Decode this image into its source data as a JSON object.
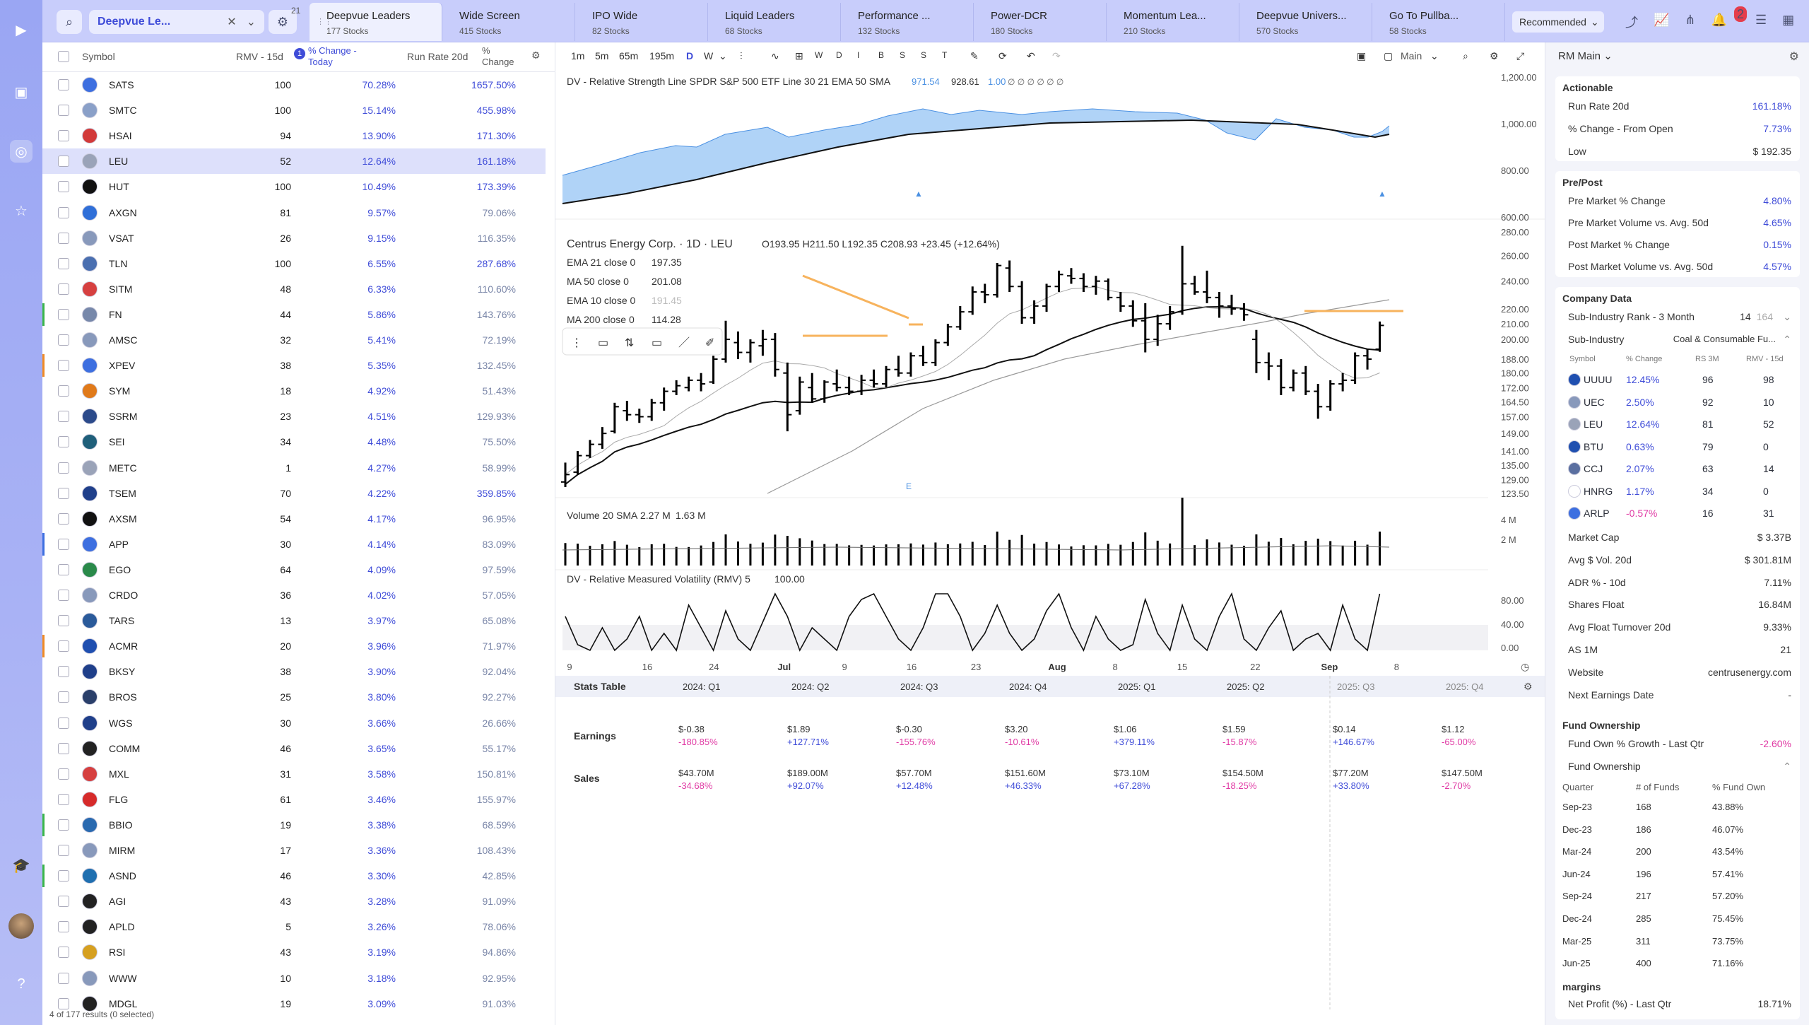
{
  "app": {
    "watchlist_name": "Deepvue Le...",
    "filter_count": "21",
    "recommended_label": "Recommended",
    "notif_count": "2"
  },
  "tabs": [
    {
      "name": "Deepvue Leaders",
      "sub": "177 Stocks"
    },
    {
      "name": "Wide Screen",
      "sub": "415 Stocks"
    },
    {
      "name": "IPO Wide",
      "sub": "82 Stocks"
    },
    {
      "name": "Liquid Leaders",
      "sub": "68 Stocks"
    },
    {
      "name": "Performance ...",
      "sub": "132 Stocks"
    },
    {
      "name": "Power-DCR",
      "sub": "180 Stocks"
    },
    {
      "name": "Momentum Lea...",
      "sub": "210 Stocks"
    },
    {
      "name": "Deepvue Univers...",
      "sub": "570 Stocks"
    },
    {
      "name": "Go To Pullba...",
      "sub": "58 Stocks"
    }
  ],
  "watchlist": {
    "headers": {
      "symbol": "Symbol",
      "rmv": "RMV - 15d",
      "sort_badge": "1",
      "pct": "% Change - Today",
      "rr": "Run Rate 20d",
      "open": "% Change - Open"
    },
    "footer": "4 of 177 results (0 selected)",
    "rows": [
      {
        "sym": "SATS",
        "rmv": "100",
        "pct": "70.28%",
        "rr": "1657.50%",
        "hot": true,
        "color": "#3d6fe0",
        "bar": ""
      },
      {
        "sym": "SMTC",
        "rmv": "100",
        "pct": "15.14%",
        "rr": "455.98%",
        "hot": true,
        "color": "#8aa0c8",
        "bar": ""
      },
      {
        "sym": "HSAI",
        "rmv": "94",
        "pct": "13.90%",
        "rr": "171.30%",
        "hot": true,
        "color": "#d23a3a",
        "bar": ""
      },
      {
        "sym": "LEU",
        "rmv": "52",
        "pct": "12.64%",
        "rr": "161.18%",
        "hot": true,
        "color": "#9aa3b8",
        "bar": "",
        "sel": true
      },
      {
        "sym": "HUT",
        "rmv": "100",
        "pct": "10.49%",
        "rr": "173.39%",
        "hot": true,
        "color": "#111111",
        "bar": ""
      },
      {
        "sym": "AXGN",
        "rmv": "81",
        "pct": "9.57%",
        "rr": "79.06%",
        "hot": false,
        "color": "#2f6fd8",
        "bar": ""
      },
      {
        "sym": "VSAT",
        "rmv": "26",
        "pct": "9.15%",
        "rr": "116.35%",
        "hot": false,
        "color": "#8899bb",
        "bar": ""
      },
      {
        "sym": "TLN",
        "rmv": "100",
        "pct": "6.55%",
        "rr": "287.68%",
        "hot": true,
        "color": "#4a6fb0",
        "bar": ""
      },
      {
        "sym": "SITM",
        "rmv": "48",
        "pct": "6.33%",
        "rr": "110.60%",
        "hot": false,
        "color": "#d64040",
        "bar": ""
      },
      {
        "sym": "FN",
        "rmv": "44",
        "pct": "5.86%",
        "rr": "143.76%",
        "hot": false,
        "color": "#7788aa",
        "bar": "#39b54a"
      },
      {
        "sym": "AMSC",
        "rmv": "32",
        "pct": "5.41%",
        "rr": "72.19%",
        "hot": false,
        "color": "#8899bb",
        "bar": ""
      },
      {
        "sym": "XPEV",
        "rmv": "38",
        "pct": "5.35%",
        "rr": "132.45%",
        "hot": false,
        "color": "#3d6fe0",
        "bar": "#f08a24"
      },
      {
        "sym": "SYM",
        "rmv": "18",
        "pct": "4.92%",
        "rr": "51.43%",
        "hot": false,
        "color": "#e07a1a",
        "bar": ""
      },
      {
        "sym": "SSRM",
        "rmv": "23",
        "pct": "4.51%",
        "rr": "129.93%",
        "hot": false,
        "color": "#2b4a8a",
        "bar": ""
      },
      {
        "sym": "SEI",
        "rmv": "34",
        "pct": "4.48%",
        "rr": "75.50%",
        "hot": false,
        "color": "#1f5f7a",
        "bar": ""
      },
      {
        "sym": "METC",
        "rmv": "1",
        "pct": "4.27%",
        "rr": "58.99%",
        "hot": false,
        "color": "#9aa3b8",
        "bar": ""
      },
      {
        "sym": "TSEM",
        "rmv": "70",
        "pct": "4.22%",
        "rr": "359.85%",
        "hot": true,
        "color": "#1f3f8a",
        "bar": ""
      },
      {
        "sym": "AXSM",
        "rmv": "54",
        "pct": "4.17%",
        "rr": "96.95%",
        "hot": false,
        "color": "#111111",
        "bar": ""
      },
      {
        "sym": "APP",
        "rmv": "30",
        "pct": "4.14%",
        "rr": "83.09%",
        "hot": false,
        "color": "#3d6fe0",
        "bar": "#3d6fe0"
      },
      {
        "sym": "EGO",
        "rmv": "64",
        "pct": "4.09%",
        "rr": "97.59%",
        "hot": false,
        "color": "#2a8a4a",
        "bar": ""
      },
      {
        "sym": "CRDO",
        "rmv": "36",
        "pct": "4.02%",
        "rr": "57.05%",
        "hot": false,
        "color": "#8899bb",
        "bar": ""
      },
      {
        "sym": "TARS",
        "rmv": "13",
        "pct": "3.97%",
        "rr": "65.08%",
        "hot": false,
        "color": "#2a5a9a",
        "bar": ""
      },
      {
        "sym": "ACMR",
        "rmv": "20",
        "pct": "3.96%",
        "rr": "71.97%",
        "hot": false,
        "color": "#1f4fb0",
        "bar": "#f08a24"
      },
      {
        "sym": "BKSY",
        "rmv": "38",
        "pct": "3.90%",
        "rr": "92.04%",
        "hot": false,
        "color": "#1f3f8a",
        "bar": ""
      },
      {
        "sym": "BROS",
        "rmv": "25",
        "pct": "3.80%",
        "rr": "92.27%",
        "hot": false,
        "color": "#2a3f6a",
        "bar": ""
      },
      {
        "sym": "WGS",
        "rmv": "30",
        "pct": "3.66%",
        "rr": "26.66%",
        "hot": false,
        "color": "#1f3f8a",
        "bar": ""
      },
      {
        "sym": "COMM",
        "rmv": "46",
        "pct": "3.65%",
        "rr": "55.17%",
        "hot": false,
        "color": "#222222",
        "bar": ""
      },
      {
        "sym": "MXL",
        "rmv": "31",
        "pct": "3.58%",
        "rr": "150.81%",
        "hot": false,
        "color": "#d64040",
        "bar": ""
      },
      {
        "sym": "FLG",
        "rmv": "61",
        "pct": "3.46%",
        "rr": "155.97%",
        "hot": false,
        "color": "#d62a2a",
        "bar": ""
      },
      {
        "sym": "BBIO",
        "rmv": "19",
        "pct": "3.38%",
        "rr": "68.59%",
        "hot": false,
        "color": "#2a6ab0",
        "bar": "#39b54a"
      },
      {
        "sym": "MIRM",
        "rmv": "17",
        "pct": "3.36%",
        "rr": "108.43%",
        "hot": false,
        "color": "#8899bb",
        "bar": ""
      },
      {
        "sym": "ASND",
        "rmv": "46",
        "pct": "3.30%",
        "rr": "42.85%",
        "hot": false,
        "color": "#1f6fb0",
        "bar": "#39b54a"
      },
      {
        "sym": "AGI",
        "rmv": "43",
        "pct": "3.28%",
        "rr": "91.09%",
        "hot": false,
        "color": "#222222",
        "bar": ""
      },
      {
        "sym": "APLD",
        "rmv": "5",
        "pct": "3.26%",
        "rr": "78.06%",
        "hot": false,
        "color": "#222222",
        "bar": ""
      },
      {
        "sym": "RSI",
        "rmv": "43",
        "pct": "3.19%",
        "rr": "94.86%",
        "hot": false,
        "color": "#d6a020",
        "bar": ""
      },
      {
        "sym": "WWW",
        "rmv": "10",
        "pct": "3.18%",
        "rr": "92.95%",
        "hot": false,
        "color": "#8899bb",
        "bar": ""
      },
      {
        "sym": "MDGL",
        "rmv": "19",
        "pct": "3.09%",
        "rr": "91.03%",
        "hot": false,
        "color": "#222222",
        "bar": ""
      }
    ]
  },
  "toolbar": {
    "timeframes": [
      "1m",
      "5m",
      "65m",
      "195m",
      "D",
      "W"
    ],
    "letters": [
      "W",
      "D",
      "I",
      "B",
      "S",
      "S",
      "T"
    ],
    "layout_label": "Main"
  },
  "chart": {
    "rs_legend": "DV - Relative Strength Line SPDR S&P 500 ETF Line 30 21 EMA 50 SMA",
    "rs_v1": "971.54",
    "rs_v2": "928.61",
    "rs_v3": "1.00",
    "title": "Centrus Energy Corp. · 1D · LEU",
    "ohlc": "O193.95  H211.50  L192.35  C208.93  +23.45 (+12.64%)",
    "mas": [
      {
        "label": "EMA 21 close 0",
        "value": "197.35",
        "light": false
      },
      {
        "label": "MA 50 close 0",
        "value": "201.08",
        "light": false
      },
      {
        "label": "EMA 10 close 0",
        "value": "191.45",
        "light": true
      },
      {
        "label": "MA 200 close 0",
        "value": "114.28",
        "light": false
      }
    ],
    "volume_legend": "Volume 20 SMA",
    "vol_v1": "2.27 M",
    "vol_v2": "1.63 M",
    "rmv_legend": "DV - Relative Measured Volatility (RMV) 5",
    "rmv_v": "100.00",
    "earnings_marker": "E",
    "rs_axis": [
      "1,200.00",
      "1,000.00",
      "800.00",
      "600.00"
    ],
    "price_axis": [
      "280.00",
      "260.00",
      "240.00",
      "220.00",
      "210.00",
      "200.00",
      "188.00",
      "180.00",
      "172.00",
      "164.50",
      "157.00",
      "149.00",
      "141.00",
      "135.00",
      "129.00",
      "123.50"
    ],
    "vol_axis": [
      "4 M",
      "2 M"
    ],
    "rmv_axis": [
      "80.00",
      "40.00",
      "0.00"
    ],
    "date_axis": [
      "9",
      "16",
      "24",
      "Jul",
      "9",
      "16",
      "23",
      "Aug",
      "8",
      "15",
      "22",
      "Sep",
      "8"
    ]
  },
  "chart_data": {
    "type": "ohlc",
    "symbol": "LEU",
    "note_values": "daily OHLC bars approximated from chart",
    "bars": [
      [
        128,
        136,
        126,
        131
      ],
      [
        132,
        141,
        131,
        139
      ],
      [
        139,
        146,
        138,
        144
      ],
      [
        144,
        152,
        142,
        149
      ],
      [
        150,
        164,
        149,
        162
      ],
      [
        160,
        165,
        155,
        158
      ],
      [
        158,
        161,
        154,
        157
      ],
      [
        157,
        166,
        155,
        164
      ],
      [
        164,
        172,
        160,
        170
      ],
      [
        170,
        176,
        168,
        173
      ],
      [
        172,
        178,
        170,
        176
      ],
      [
        176,
        180,
        170,
        174
      ],
      [
        175,
        190,
        174,
        188
      ],
      [
        188,
        212,
        186,
        200
      ],
      [
        198,
        205,
        188,
        192
      ],
      [
        192,
        200,
        186,
        198
      ],
      [
        196,
        206,
        190,
        200
      ],
      [
        200,
        204,
        178,
        182
      ],
      [
        180,
        186,
        150,
        158
      ],
      [
        160,
        178,
        158,
        175
      ],
      [
        172,
        180,
        164,
        166
      ],
      [
        166,
        176,
        164,
        175
      ],
      [
        174,
        182,
        170,
        172
      ],
      [
        172,
        178,
        168,
        170
      ],
      [
        170,
        179,
        168,
        176
      ],
      [
        176,
        182,
        172,
        174
      ],
      [
        174,
        184,
        172,
        182
      ],
      [
        182,
        190,
        178,
        180
      ],
      [
        180,
        192,
        178,
        190
      ],
      [
        190,
        196,
        184,
        186
      ],
      [
        186,
        200,
        184,
        198
      ],
      [
        198,
        210,
        196,
        208
      ],
      [
        208,
        222,
        206,
        218
      ],
      [
        218,
        236,
        216,
        232
      ],
      [
        232,
        238,
        224,
        230
      ],
      [
        230,
        254,
        228,
        252
      ],
      [
        250,
        256,
        232,
        236
      ],
      [
        236,
        240,
        210,
        214
      ],
      [
        214,
        226,
        210,
        222
      ],
      [
        222,
        238,
        218,
        236
      ],
      [
        236,
        248,
        232,
        245
      ],
      [
        244,
        250,
        238,
        242
      ],
      [
        242,
        246,
        232,
        236
      ],
      [
        236,
        244,
        230,
        240
      ],
      [
        240,
        242,
        226,
        228
      ],
      [
        228,
        232,
        218,
        222
      ],
      [
        222,
        226,
        208,
        212
      ],
      [
        212,
        224,
        192,
        200
      ],
      [
        200,
        216,
        196,
        210
      ],
      [
        210,
        222,
        206,
        218
      ],
      [
        218,
        268,
        216,
        238
      ],
      [
        238,
        244,
        230,
        232
      ],
      [
        232,
        248,
        224,
        228
      ],
      [
        228,
        232,
        214,
        222
      ],
      [
        222,
        230,
        216,
        220
      ],
      [
        220,
        224,
        212,
        216
      ],
      [
        200,
        206,
        180,
        186
      ],
      [
        186,
        192,
        176,
        184
      ],
      [
        184,
        188,
        168,
        172
      ],
      [
        172,
        182,
        170,
        180
      ],
      [
        180,
        184,
        168,
        170
      ],
      [
        170,
        174,
        156,
        162
      ],
      [
        162,
        176,
        160,
        174
      ],
      [
        174,
        180,
        170,
        176
      ],
      [
        176,
        192,
        174,
        190
      ],
      [
        190,
        194,
        182,
        188
      ],
      [
        193.95,
        211.5,
        192.35,
        208.93
      ]
    ],
    "yrange": [
      123.5,
      280
    ]
  },
  "right_panel": {
    "title": "RM Main",
    "actionable": {
      "title": "Actionable",
      "items": [
        {
          "k": "Run Rate 20d",
          "v": "161.18%",
          "c": "blue"
        },
        {
          "k": "% Change - From Open",
          "v": "7.73%",
          "c": "blue"
        },
        {
          "k": "Low",
          "v": "$ 192.35",
          "c": ""
        }
      ]
    },
    "prepost": {
      "title": "Pre/Post",
      "items": [
        {
          "k": "Pre Market % Change",
          "v": "4.80%",
          "c": "blue"
        },
        {
          "k": "Pre Market Volume vs. Avg. 50d",
          "v": "4.65%",
          "c": "blue"
        },
        {
          "k": "Post Market % Change",
          "v": "0.15%",
          "c": "blue"
        },
        {
          "k": "Post Market Volume vs. Avg. 50d",
          "v": "4.57%",
          "c": "blue"
        }
      ]
    },
    "company": {
      "title": "Company Data",
      "rank_k": "Sub-Industry Rank - 3 Month",
      "rank_v": "14",
      "rank_total": "164",
      "subind_k": "Sub-Industry",
      "subind_v": "Coal & Consumable Fu...",
      "peer_headers": [
        "Symbol",
        "% Change",
        "RS 3M",
        "RMV - 15d"
      ],
      "peers": [
        {
          "s": "UUUU",
          "p": "12.45%",
          "rs": "96",
          "rmv": "98",
          "c": "blue",
          "lc": "#1f4fb0"
        },
        {
          "s": "UEC",
          "p": "2.50%",
          "rs": "92",
          "rmv": "10",
          "c": "blue",
          "lc": "#8899bb"
        },
        {
          "s": "LEU",
          "p": "12.64%",
          "rs": "81",
          "rmv": "52",
          "c": "blue",
          "lc": "#9aa3b8"
        },
        {
          "s": "BTU",
          "p": "0.63%",
          "rs": "79",
          "rmv": "0",
          "c": "blue",
          "lc": "#1f4fb0"
        },
        {
          "s": "CCJ",
          "p": "2.07%",
          "rs": "63",
          "rmv": "14",
          "c": "blue",
          "lc": "#5a6fa0"
        },
        {
          "s": "HNRG",
          "p": "1.17%",
          "rs": "34",
          "rmv": "0",
          "c": "blue",
          "lc": "#ffffff"
        },
        {
          "s": "ARLP",
          "p": "-0.57%",
          "rs": "16",
          "rmv": "31",
          "c": "pink",
          "lc": "#3d6fe0"
        }
      ],
      "items": [
        {
          "k": "Market Cap",
          "v": "$ 3.37B"
        },
        {
          "k": "Avg $ Vol. 20d",
          "v": "$ 301.81M"
        },
        {
          "k": "ADR % - 10d",
          "v": "7.11%"
        },
        {
          "k": "Shares Float",
          "v": "16.84M"
        },
        {
          "k": "Avg Float Turnover 20d",
          "v": "9.33%"
        },
        {
          "k": "AS 1M",
          "v": "21"
        },
        {
          "k": "Website",
          "v": "centrusenergy.com"
        },
        {
          "k": "Next Earnings Date",
          "v": "-"
        }
      ]
    },
    "fund": {
      "title": "Fund Ownership",
      "growth_k": "Fund Own % Growth - Last Qtr",
      "growth_v": "-2.60%",
      "sub": "Fund Ownership",
      "headers": [
        "Quarter",
        "# of Funds",
        "% Fund Own"
      ],
      "rows": [
        [
          "Sep-23",
          "168",
          "43.88%"
        ],
        [
          "Dec-23",
          "186",
          "46.07%"
        ],
        [
          "Mar-24",
          "200",
          "43.54%"
        ],
        [
          "Jun-24",
          "196",
          "57.41%"
        ],
        [
          "Sep-24",
          "217",
          "57.20%"
        ],
        [
          "Dec-24",
          "285",
          "75.45%"
        ],
        [
          "Mar-25",
          "311",
          "73.75%"
        ],
        [
          "Jun-25",
          "400",
          "71.16%"
        ]
      ]
    },
    "margins": {
      "title": "margins",
      "k": "Net Profit (%) - Last Qtr",
      "v": "18.71%"
    }
  },
  "stats": {
    "title": "Stats Table",
    "quarters": [
      "2024: Q1",
      "2024: Q2",
      "2024: Q3",
      "2024: Q4",
      "2025: Q1",
      "2025: Q2",
      "2025: Q3",
      "2025: Q4"
    ],
    "earnings_label": "Earnings",
    "earnings": [
      [
        "$-0.38",
        "-180.85%",
        "pink"
      ],
      [
        "$1.89",
        "+127.71%",
        "blue"
      ],
      [
        "$-0.30",
        "-155.76%",
        "pink"
      ],
      [
        "$3.20",
        "-10.61%",
        "pink"
      ],
      [
        "$1.06",
        "+379.11%",
        "blue"
      ],
      [
        "$1.59",
        "-15.87%",
        "pink"
      ],
      [
        "$0.14",
        "+146.67%",
        "blue"
      ],
      [
        "$1.12",
        "-65.00%",
        "pink"
      ]
    ],
    "sales_label": "Sales",
    "sales": [
      [
        "$43.70M",
        "-34.68%",
        "pink"
      ],
      [
        "$189.00M",
        "+92.07%",
        "blue"
      ],
      [
        "$57.70M",
        "+12.48%",
        "blue"
      ],
      [
        "$151.60M",
        "+46.33%",
        "blue"
      ],
      [
        "$73.10M",
        "+67.28%",
        "blue"
      ],
      [
        "$154.50M",
        "-18.25%",
        "pink"
      ],
      [
        "$77.20M",
        "+33.80%",
        "blue"
      ],
      [
        "$147.50M",
        "-2.70%",
        "pink"
      ]
    ]
  }
}
